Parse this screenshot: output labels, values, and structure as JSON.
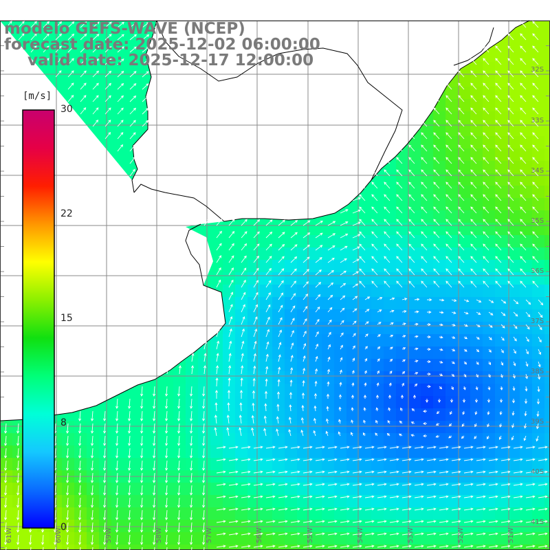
{
  "title": {
    "line1": "modelo GEFS-WAVE (NCEP)",
    "line2": "forecast date: 2025-12-02 06:00:00",
    "line3": "valid date: 2025-12-17 12:00:00"
  },
  "colorbar": {
    "unit_label": "[m/s]",
    "ticks": [
      "30",
      "22",
      "15",
      "8",
      "0"
    ],
    "colors": [
      "#0000ff",
      "#0a6cff",
      "#14c8ff",
      "#00ffd8",
      "#00ff78",
      "#10e010",
      "#8cf000",
      "#ffff00",
      "#ff9600",
      "#ff1e00",
      "#e60046",
      "#c8006e"
    ]
  },
  "latitude_labels": [
    "32S",
    "33S",
    "34S",
    "35S",
    "36S",
    "37S",
    "38S",
    "39S",
    "40S",
    "41S"
  ],
  "longitude_labels": [
    "61W",
    "60W",
    "59W",
    "58W",
    "57W",
    "56W",
    "55W",
    "54W",
    "53W",
    "52W",
    "51W"
  ],
  "colors": {
    "land": "#ffffff",
    "coastline": "#000000",
    "grid": "#8a8a8a",
    "arrows": "#ffffff",
    "title": "#7a7a7a"
  }
}
